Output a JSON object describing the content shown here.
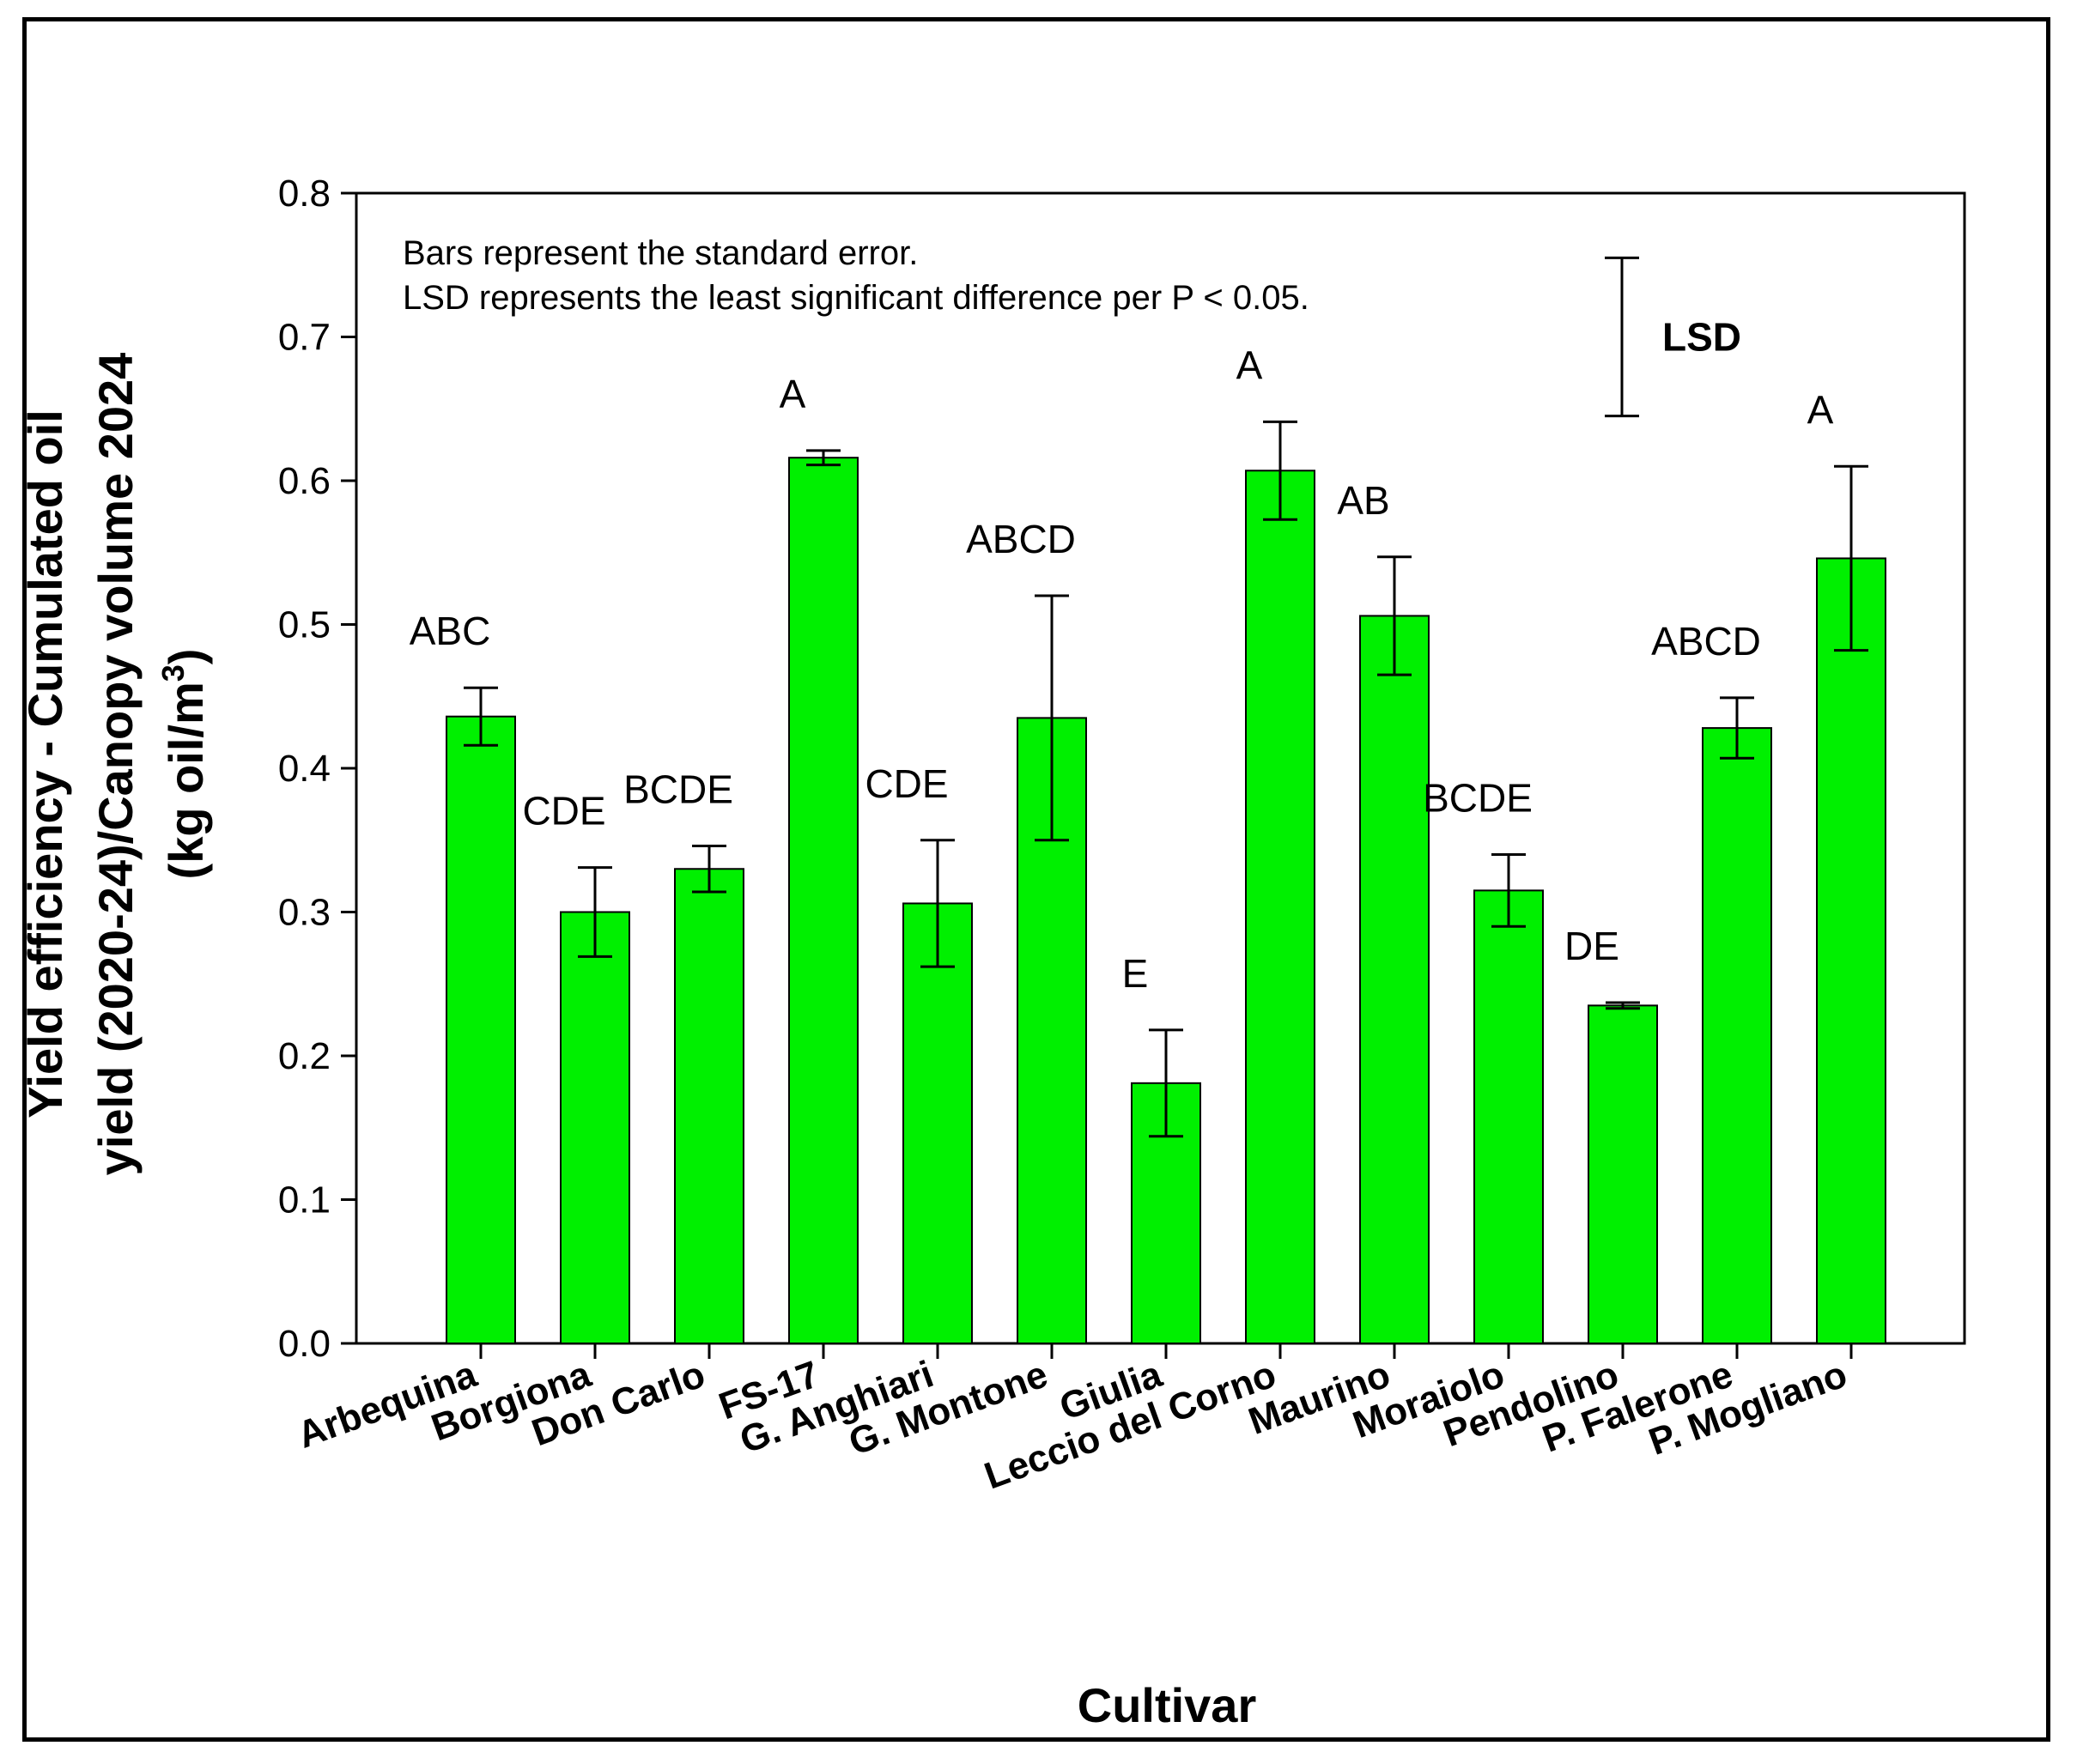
{
  "chart_data": {
    "type": "bar",
    "title": "",
    "xlabel": "Cultivar",
    "ylabel_lines": [
      "Yield efficiency - Cumulated oil",
      "yield (2020-24)/Canopy volume 2024"
    ],
    "ylabel_unit": {
      "text": "(kg oil/m",
      "superscript": "3",
      "close": ")"
    },
    "ylim": [
      0,
      0.8
    ],
    "yticks": [
      "0.0",
      "0.1",
      "0.2",
      "0.3",
      "0.4",
      "0.5",
      "0.6",
      "0.7",
      "0.8"
    ],
    "bar_color": "#00f000",
    "categories": [
      "Arbequina",
      "Borgiona",
      "Don Carlo",
      "FS-17",
      "G. Anghiari",
      "G. Montone",
      "Giulia",
      "Leccio del Corno",
      "Maurino",
      "Moraiolo",
      "Pendolino",
      "P. Falerone",
      "P. Mogliano"
    ],
    "values": [
      0.436,
      0.3,
      0.33,
      0.616,
      0.306,
      0.435,
      0.181,
      0.607,
      0.506,
      0.315,
      0.235,
      0.428,
      0.546
    ],
    "errors": [
      0.02,
      0.031,
      0.016,
      0.005,
      0.044,
      0.085,
      0.037,
      0.034,
      0.041,
      0.025,
      0.002,
      0.021,
      0.064
    ],
    "significance": [
      "ABC",
      "CDE",
      "BCDE",
      "A",
      "CDE",
      "ABCD",
      "E",
      "A",
      "AB",
      "BCDE",
      "DE",
      "ABCD",
      "A"
    ],
    "notes": [
      "Bars represent the standard error.",
      "LSD represents the least significant difference per P < 0.05."
    ],
    "lsd": {
      "label": "LSD",
      "low": 0.645,
      "high": 0.755
    }
  }
}
